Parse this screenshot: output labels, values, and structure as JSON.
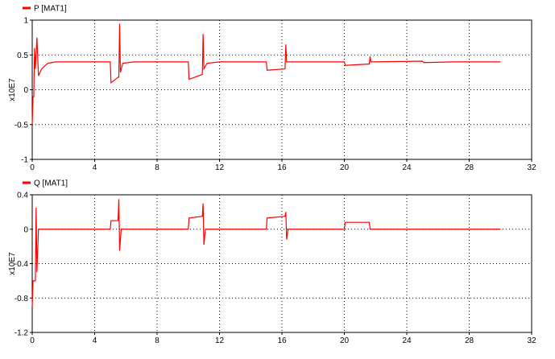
{
  "chart_data": [
    {
      "type": "line",
      "ylabel": "x10E7",
      "x": [
        0,
        0.05,
        0.1,
        0.15,
        0.2,
        0.3,
        0.4,
        0.6,
        1,
        1.5,
        3,
        5,
        5.05,
        5.5,
        5.55,
        5.6,
        5.65,
        5.8,
        6.5,
        10,
        10.05,
        10.9,
        10.95,
        11.0,
        11.2,
        12,
        15,
        15.05,
        16.2,
        16.25,
        16.3,
        17,
        20,
        20.05,
        21.6,
        21.65,
        21.7,
        25,
        25.1,
        27,
        30
      ],
      "series": [
        {
          "name": "P [MAT1]",
          "color": "#ff0000",
          "values": [
            -0.5,
            -0.1,
            -0.1,
            0.6,
            0.3,
            0.75,
            0.2,
            0.3,
            0.38,
            0.4,
            0.4,
            0.4,
            0.1,
            0.18,
            0.18,
            0.95,
            0.25,
            0.38,
            0.4,
            0.4,
            0.15,
            0.22,
            0.8,
            0.3,
            0.38,
            0.4,
            0.4,
            0.28,
            0.3,
            0.65,
            0.4,
            0.4,
            0.4,
            0.35,
            0.37,
            0.48,
            0.4,
            0.41,
            0.39,
            0.4,
            0.4
          ]
        }
      ],
      "xlim": [
        0,
        32
      ],
      "xticks": [
        0,
        4,
        8,
        12,
        16,
        20,
        24,
        28,
        32
      ],
      "ylim": [
        -1,
        1
      ],
      "yticks": [
        1,
        0.5,
        0,
        -0.5,
        -1
      ],
      "grid": true
    },
    {
      "type": "line",
      "ylabel": "x10E7",
      "x": [
        0,
        0.05,
        0.2,
        0.25,
        0.3,
        0.4,
        5,
        5.05,
        5.5,
        5.55,
        5.6,
        5.7,
        10,
        10.05,
        10.9,
        10.95,
        11.0,
        11.1,
        15,
        15.05,
        16.2,
        16.25,
        16.3,
        16.4,
        20,
        20.05,
        21.6,
        21.65,
        30
      ],
      "series": [
        {
          "name": "Q [MAT1]",
          "color": "#ff0000",
          "values": [
            -0.9,
            -0.6,
            -0.6,
            0.25,
            -0.5,
            0,
            0,
            0.1,
            0.1,
            0.35,
            -0.25,
            0,
            0,
            0.13,
            0.15,
            0.3,
            -0.18,
            0,
            0,
            0.13,
            0.15,
            0.2,
            -0.12,
            0,
            0,
            0.08,
            0.08,
            0,
            0
          ]
        }
      ],
      "xlim": [
        0,
        32
      ],
      "xticks": [
        0,
        4,
        8,
        12,
        16,
        20,
        24,
        28,
        32
      ],
      "ylim": [
        -1.2,
        0.4
      ],
      "yticks": [
        0.4,
        0,
        -0.4,
        -0.8,
        -1.2
      ],
      "grid": true
    }
  ]
}
